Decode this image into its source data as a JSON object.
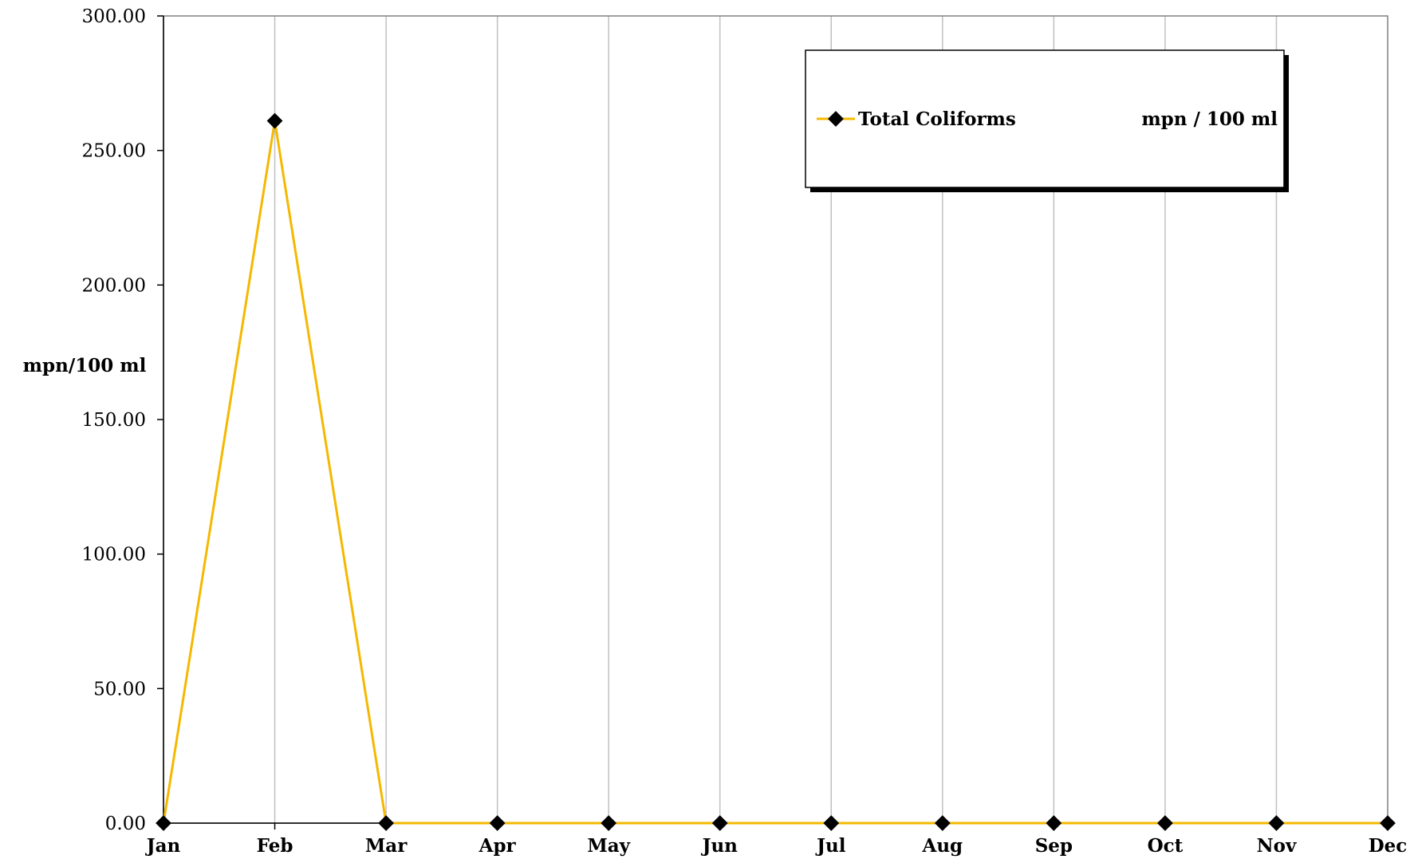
{
  "chart_data": {
    "type": "line",
    "title": "",
    "xlabel": "",
    "ylabel": "mpn/100 ml",
    "categories": [
      "Jan",
      "Feb",
      "Mar",
      "Apr",
      "May",
      "Jun",
      "Jul",
      "Aug",
      "Sep",
      "Oct",
      "Nov",
      "Dec"
    ],
    "series": [
      {
        "name": "Total Coliforms",
        "unit": "mpn / 100 ml",
        "values": [
          0,
          261,
          0,
          0,
          0,
          0,
          0,
          0,
          0,
          0,
          0,
          0
        ],
        "color": "#F5B800",
        "marker": "diamond",
        "marker_color": "#000000"
      }
    ],
    "ylim": [
      0,
      300
    ],
    "y_ticks": [
      "0.00",
      "50.00",
      "100.00",
      "150.00",
      "200.00",
      "250.00",
      "300.00"
    ],
    "grid": "vertical",
    "legend": "top-right"
  }
}
